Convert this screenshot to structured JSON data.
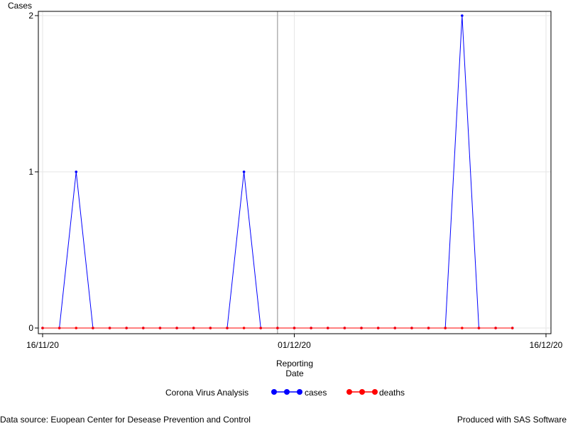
{
  "footer": {
    "left": "Data source: Euopean Center for Desease Prevention and Control",
    "right": "Produced with SAS Software"
  },
  "chart_data": {
    "type": "line",
    "ylabel": "Cases",
    "xlabel_lines": [
      "Reporting",
      "Date"
    ],
    "legend_title": "Corona Virus Analysis",
    "legend_position": "bottom",
    "grid": true,
    "x_ticks": [
      "16/11/20",
      "01/12/20",
      "16/12/20"
    ],
    "y_ticks": [
      "0",
      "1",
      "2"
    ],
    "xlim": [
      "2020-11-16",
      "2020-12-16"
    ],
    "ylim": [
      0,
      2
    ],
    "reference_line_x": "2020-11-30",
    "colors": {
      "cases": "#0000ff",
      "deaths": "#ff0000"
    },
    "x": [
      "2020-11-16",
      "2020-11-17",
      "2020-11-18",
      "2020-11-19",
      "2020-11-20",
      "2020-11-21",
      "2020-11-22",
      "2020-11-23",
      "2020-11-24",
      "2020-11-25",
      "2020-11-26",
      "2020-11-27",
      "2020-11-28",
      "2020-11-29",
      "2020-11-30",
      "2020-12-01",
      "2020-12-02",
      "2020-12-03",
      "2020-12-04",
      "2020-12-05",
      "2020-12-06",
      "2020-12-07",
      "2020-12-08",
      "2020-12-09",
      "2020-12-10",
      "2020-12-11",
      "2020-12-12",
      "2020-12-13",
      "2020-12-14"
    ],
    "series": [
      {
        "name": "cases",
        "values": [
          0,
          0,
          1,
          0,
          0,
          0,
          0,
          0,
          0,
          0,
          0,
          0,
          1,
          0,
          0,
          0,
          0,
          0,
          0,
          0,
          0,
          0,
          0,
          0,
          0,
          2,
          0,
          0,
          0
        ]
      },
      {
        "name": "deaths",
        "values": [
          0,
          0,
          0,
          0,
          0,
          0,
          0,
          0,
          0,
          0,
          0,
          0,
          0,
          0,
          0,
          0,
          0,
          0,
          0,
          0,
          0,
          0,
          0,
          0,
          0,
          0,
          0,
          0,
          0
        ]
      }
    ]
  }
}
